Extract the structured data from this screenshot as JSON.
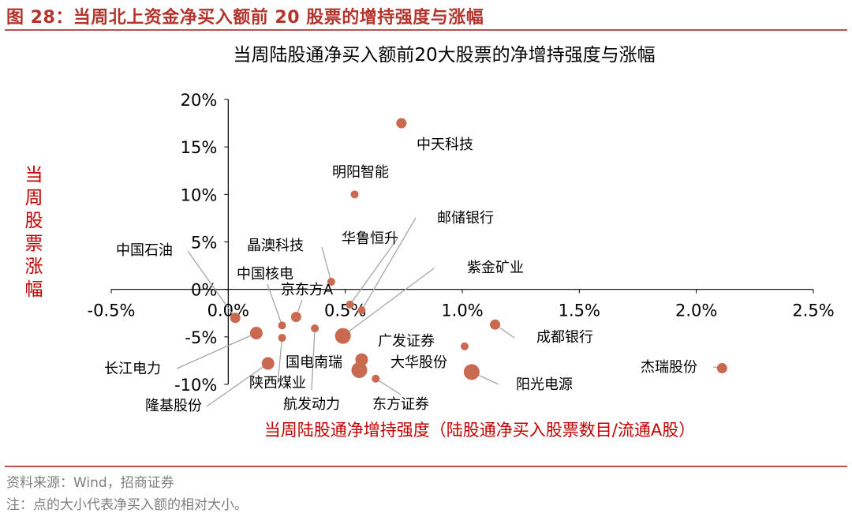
{
  "figure": {
    "title": "图 28：当周北上资金净买入额前 20 股票的增持强度与涨幅",
    "source": "资料来源：Wind，招商证券",
    "note": "注：点的大小代表净买入额的相对大小。"
  },
  "colors": {
    "accent": "#c0504d",
    "dot": "#c9694f",
    "leader": "#a6a6a6",
    "axis": "#000000"
  },
  "chart_data": {
    "type": "scatter",
    "title": "当周陆股通净买入额前20大股票的净增持强度与涨幅",
    "xlabel": "当周陆股通净增持强度（陆股通净买入股票数目/流通A股）",
    "ylabel": "当周股票涨幅",
    "xlim": [
      -0.5,
      2.5
    ],
    "ylim": [
      -10,
      20
    ],
    "x_unit": "%",
    "y_unit": "%",
    "x_ticks": [
      "-0.5%",
      "0.0%",
      "0.5%",
      "1.0%",
      "1.5%",
      "2.0%",
      "2.5%"
    ],
    "y_ticks": [
      "20%",
      "15%",
      "10%",
      "5%",
      "0%",
      "-5%",
      "-10%"
    ],
    "grid": false,
    "points": [
      {
        "name": "中天科技",
        "x": 0.74,
        "y": 17.5,
        "size": 2
      },
      {
        "name": "明阳智能",
        "x": 0.54,
        "y": 10.0,
        "size": 1
      },
      {
        "name": "晶澳科技",
        "x": 0.44,
        "y": 0.8,
        "size": 1
      },
      {
        "name": "华鲁恒升",
        "x": 0.52,
        "y": -1.6,
        "size": 1
      },
      {
        "name": "邮储银行",
        "x": 0.57,
        "y": -2.2,
        "size": 1
      },
      {
        "name": "紫金矿业",
        "x": 0.49,
        "y": -4.9,
        "size": 4
      },
      {
        "name": "中国石油",
        "x": 0.03,
        "y": -3.0,
        "size": 2
      },
      {
        "name": "中国核电",
        "x": 0.23,
        "y": -3.8,
        "size": 1
      },
      {
        "name": "京东方A",
        "x": 0.29,
        "y": -2.9,
        "size": 2
      },
      {
        "name": "航发动力",
        "x": 0.37,
        "y": -4.1,
        "size": 1
      },
      {
        "name": "长江电力",
        "x": 0.12,
        "y": -4.6,
        "size": 3
      },
      {
        "name": "陕西煤业",
        "x": 0.23,
        "y": -5.1,
        "size": 1
      },
      {
        "name": "隆基股份",
        "x": 0.17,
        "y": -7.8,
        "size": 3
      },
      {
        "name": "广发证券",
        "x": 0.57,
        "y": -7.4,
        "size": 3
      },
      {
        "name": "国电南瑞",
        "x": 0.56,
        "y": -8.5,
        "size": 4
      },
      {
        "name": "大华股份",
        "x": 1.01,
        "y": -6.0,
        "size": 1
      },
      {
        "name": "东方证券",
        "x": 0.63,
        "y": -9.4,
        "size": 1
      },
      {
        "name": "成都银行",
        "x": 1.14,
        "y": -3.7,
        "size": 2
      },
      {
        "name": "阳光电源",
        "x": 1.04,
        "y": -8.7,
        "size": 4
      },
      {
        "name": "杰瑞股份",
        "x": 2.11,
        "y": -8.3,
        "size": 2
      }
    ]
  }
}
